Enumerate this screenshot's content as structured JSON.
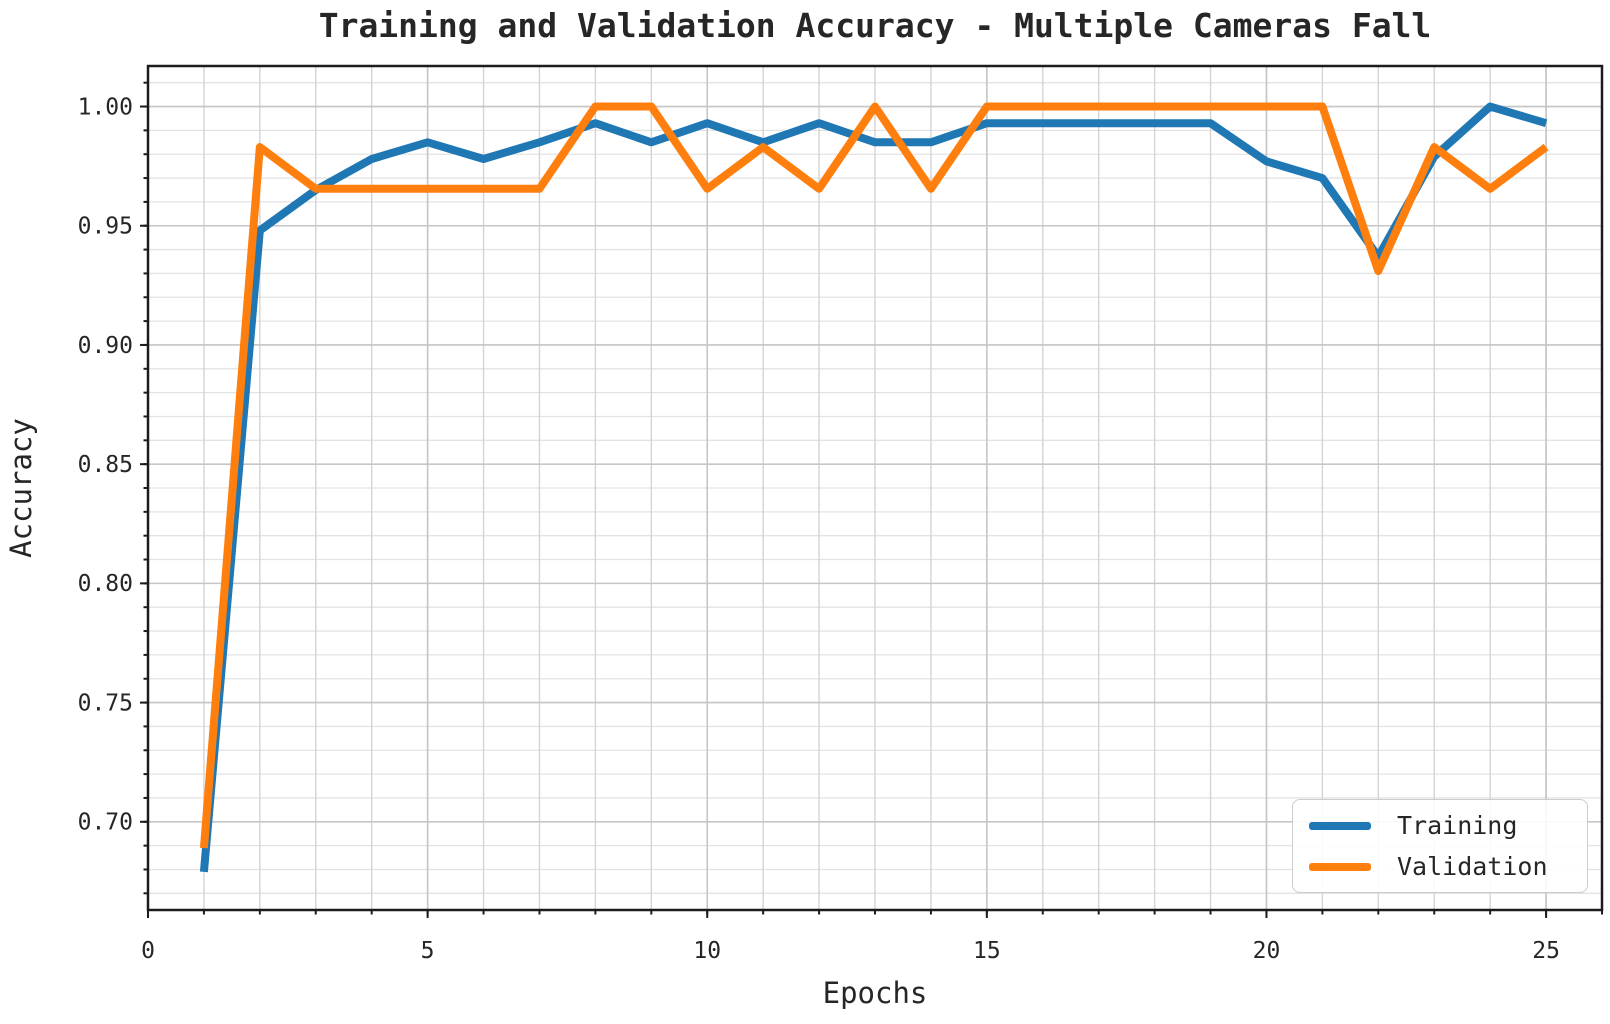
{
  "chart_data": {
    "type": "line",
    "title": "Training and Validation Accuracy - Multiple Cameras Fall",
    "xlabel": "Epochs",
    "ylabel": "Accuracy",
    "x": [
      1,
      2,
      3,
      4,
      5,
      6,
      7,
      8,
      9,
      10,
      11,
      12,
      13,
      14,
      15,
      16,
      17,
      18,
      19,
      20,
      21,
      22,
      23,
      24,
      25
    ],
    "series": [
      {
        "name": "Training",
        "color": "#1f77b4",
        "values": [
          0.679,
          0.948,
          0.965,
          0.978,
          0.985,
          0.978,
          0.985,
          0.993,
          0.985,
          0.993,
          0.985,
          0.993,
          0.985,
          0.985,
          0.993,
          0.993,
          0.993,
          0.993,
          0.993,
          0.977,
          0.97,
          0.937,
          0.979,
          1.0,
          0.993
        ]
      },
      {
        "name": "Validation",
        "color": "#ff7f0e",
        "values": [
          0.689,
          0.983,
          0.9655,
          0.9655,
          0.9655,
          0.9655,
          0.9655,
          1.0,
          1.0,
          0.9655,
          0.983,
          0.9655,
          1.0,
          0.9655,
          1.0,
          1.0,
          1.0,
          1.0,
          1.0,
          1.0,
          1.0,
          0.931,
          0.983,
          0.9655,
          0.983
        ]
      }
    ],
    "xlim": [
      0,
      26
    ],
    "ylim": [
      0.663,
      1.017
    ],
    "x_ticks": {
      "values": [
        0,
        5,
        10,
        15,
        20,
        25
      ],
      "labels": [
        "0",
        "5",
        "10",
        "15",
        "20",
        "25"
      ],
      "minor_step": 1
    },
    "y_ticks": {
      "values": [
        0.7,
        0.75,
        0.8,
        0.85,
        0.9,
        0.95,
        1.0
      ],
      "labels": [
        "0.70",
        "0.75",
        "0.80",
        "0.85",
        "0.90",
        "0.95",
        "1.00"
      ],
      "minor_step": 0.01
    },
    "grid": {
      "major": true,
      "minor": true
    },
    "legend": {
      "position": "lower right",
      "entries": [
        {
          "label": "Training",
          "color": "#1f77b4"
        },
        {
          "label": "Validation",
          "color": "#ff7f0e"
        }
      ]
    }
  }
}
